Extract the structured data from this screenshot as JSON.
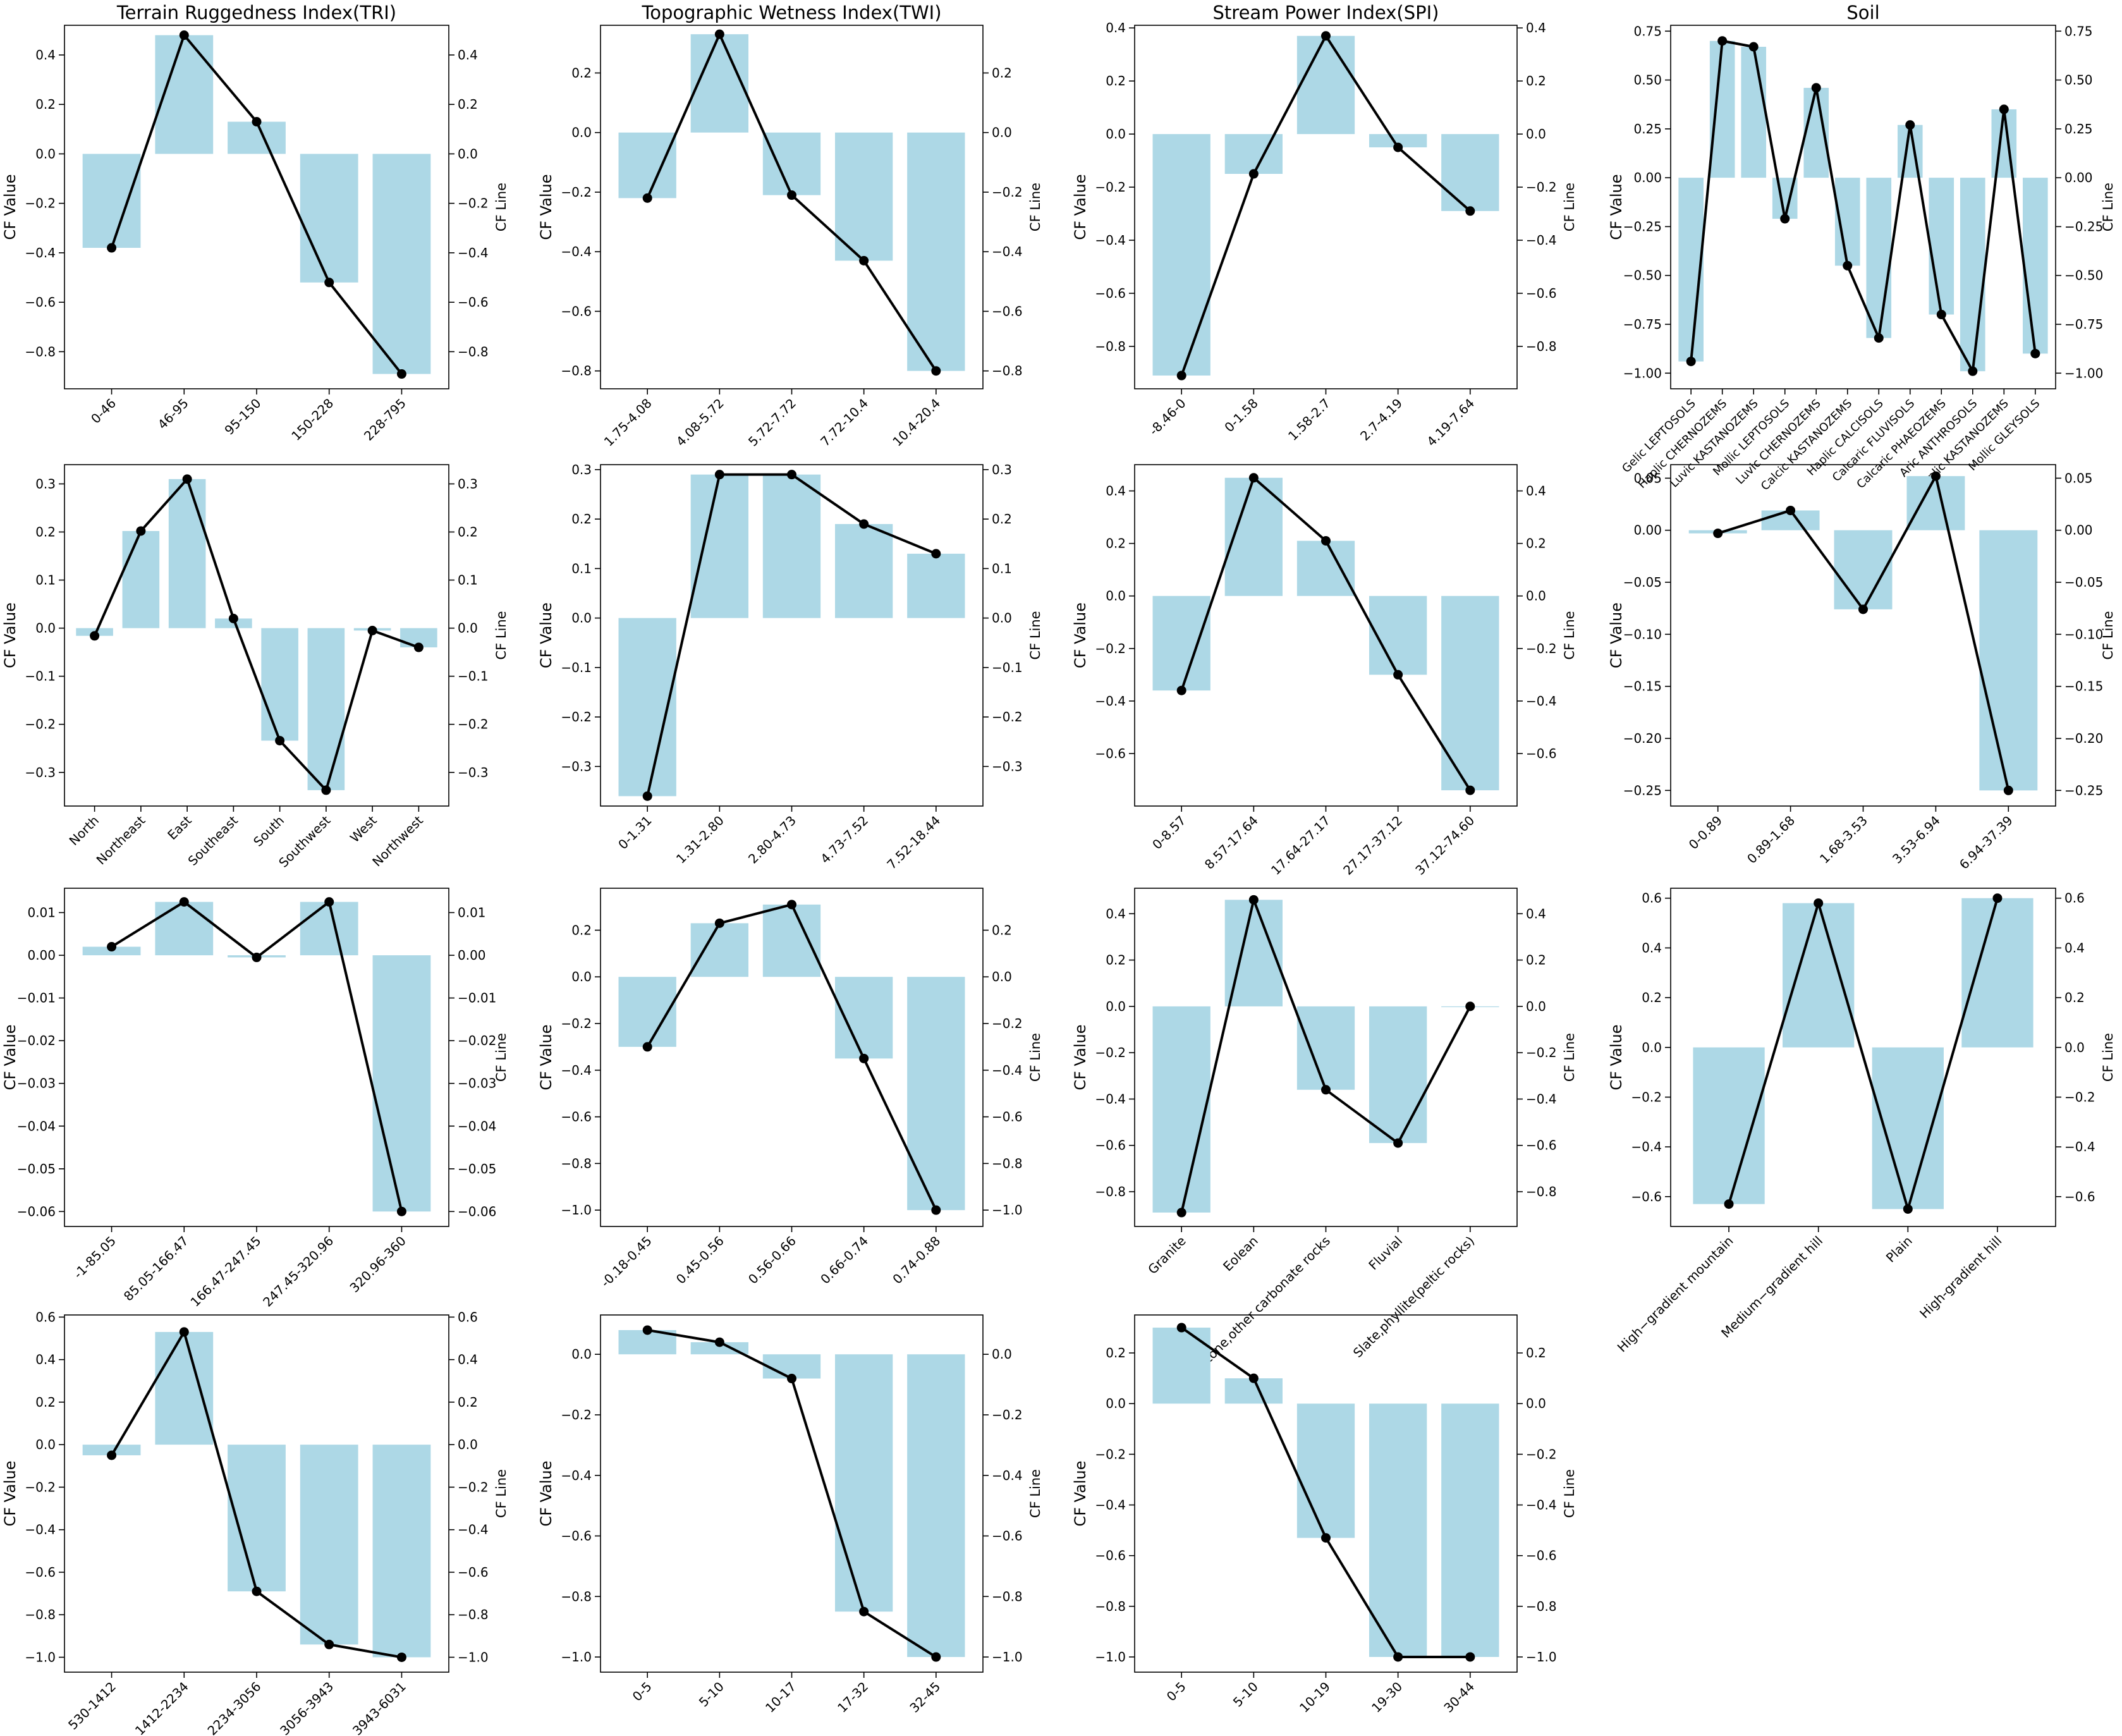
{
  "figure": {
    "rows": 4,
    "cols": 4,
    "bar_color": "#add8e6",
    "line_color": "#000000",
    "left_ylabel": "CF Value",
    "right_ylabel": "CF Line"
  },
  "chart_data": [
    {
      "type": "bar",
      "title": "Terrain Ruggedness Index(TRI)",
      "categories": [
        "0-46",
        "46-95",
        "95-150",
        "150-228",
        "228-795"
      ],
      "values": [
        -0.38,
        0.48,
        0.13,
        -0.52,
        -0.89
      ],
      "ylim": [
        -0.95,
        0.52
      ],
      "yticks": [
        0.4,
        0.2,
        0.0,
        -0.2,
        -0.4,
        -0.6,
        -0.8
      ],
      "ytick_labels": [
        "0.4",
        "0.2",
        "0.0",
        "−0.2",
        "−0.4",
        "−0.6",
        "−0.8"
      ]
    },
    {
      "type": "bar",
      "title": "Topographic Wetness Index(TWI)",
      "categories": [
        "1.75-4.08",
        "4.08-5.72",
        "5.72-7.72",
        "7.72-10.4",
        "10.4-20.4"
      ],
      "values": [
        -0.22,
        0.33,
        -0.21,
        -0.43,
        -0.8
      ],
      "ylim": [
        -0.86,
        0.36
      ],
      "yticks": [
        0.2,
        0.0,
        -0.2,
        -0.4,
        -0.6,
        -0.8
      ],
      "ytick_labels": [
        "0.2",
        "0.0",
        "−0.2",
        "−0.4",
        "−0.6",
        "−0.8"
      ]
    },
    {
      "type": "bar",
      "title": "Stream Power Index(SPI)",
      "categories": [
        "-8.46-0",
        "0-1.58",
        "1.58-2.7",
        "2.7-4.19",
        "4.19-7.64"
      ],
      "values": [
        -0.91,
        -0.15,
        0.37,
        -0.05,
        -0.29
      ],
      "ylim": [
        -0.96,
        0.41
      ],
      "yticks": [
        0.4,
        0.2,
        0.0,
        -0.2,
        -0.4,
        -0.6,
        -0.8
      ],
      "ytick_labels": [
        "0.4",
        "0.2",
        "0.0",
        "−0.2",
        "−0.4",
        "−0.6",
        "−0.8"
      ]
    },
    {
      "type": "bar",
      "title": "Soil",
      "categories": [
        "Gelic LEPTOSOLS",
        "Haplic CHERNOZEMS",
        "Luvic KASTANOZEMS",
        "Mollic LEPTOSOLS",
        "Luvic CHERNOZEMS",
        "Calcic KASTANOZEMS",
        "Haplic CALCISOLS",
        "Calcaric FLUVISOLS",
        "Calcaric PHAEOZEMS",
        "Aric ANTHROSOLS",
        "Haplic KASTANOZEMS",
        "Mollic GLEYSOLS"
      ],
      "values": [
        -0.94,
        0.7,
        0.67,
        -0.21,
        0.46,
        -0.45,
        -0.82,
        0.27,
        -0.7,
        -0.99,
        0.35,
        -0.9
      ],
      "ylim": [
        -1.08,
        0.78
      ],
      "yticks": [
        0.75,
        0.5,
        0.25,
        0.0,
        -0.25,
        -0.5,
        -0.75,
        -1.0
      ],
      "ytick_labels": [
        "0.75",
        "0.50",
        "0.25",
        "0.00",
        "−0.25",
        "−0.50",
        "−0.75",
        "−1.00"
      ]
    },
    {
      "type": "bar",
      "title": "",
      "categories": [
        "North",
        "Northeast",
        "East",
        "Southeast",
        "South",
        "Southwest",
        "West",
        "Northwest"
      ],
      "values": [
        -0.016,
        0.202,
        0.31,
        0.02,
        -0.234,
        -0.337,
        -0.005,
        -0.04
      ],
      "ylim": [
        -0.37,
        0.34
      ],
      "yticks": [
        0.3,
        0.2,
        0.1,
        0.0,
        -0.1,
        -0.2,
        -0.3
      ],
      "ytick_labels": [
        "0.3",
        "0.2",
        "0.1",
        "0.0",
        "−0.1",
        "−0.2",
        "−0.3"
      ]
    },
    {
      "type": "bar",
      "title": "",
      "categories": [
        "0-1.31",
        "1.31-2.80",
        "2.80-4.73",
        "4.73-7.52",
        "7.52-18.44"
      ],
      "values": [
        -0.36,
        0.29,
        0.29,
        0.19,
        0.13
      ],
      "ylim": [
        -0.38,
        0.31
      ],
      "yticks": [
        0.3,
        0.2,
        0.1,
        0.0,
        -0.1,
        -0.2,
        -0.3
      ],
      "ytick_labels": [
        "0.3",
        "0.2",
        "0.1",
        "0.0",
        "−0.1",
        "−0.2",
        "−0.3"
      ]
    },
    {
      "type": "bar",
      "title": "",
      "categories": [
        "0-8.57",
        "8.57-17.64",
        "17.64-27.17",
        "27.17-37.12",
        "37.12-74.60"
      ],
      "values": [
        -0.36,
        0.45,
        0.21,
        -0.3,
        -0.74
      ],
      "ylim": [
        -0.8,
        0.5
      ],
      "yticks": [
        0.4,
        0.2,
        0.0,
        -0.2,
        -0.4,
        -0.6
      ],
      "ytick_labels": [
        "0.4",
        "0.2",
        "0.0",
        "−0.2",
        "−0.4",
        "−0.6"
      ]
    },
    {
      "type": "bar",
      "title": "",
      "categories": [
        "0-0.89",
        "0.89-1.68",
        "1.68-3.53",
        "3.53-6.94",
        "6.94-37.39"
      ],
      "values": [
        -0.003,
        0.019,
        -0.076,
        0.052,
        -0.25
      ],
      "ylim": [
        -0.265,
        0.063
      ],
      "yticks": [
        0.05,
        0.0,
        -0.05,
        -0.1,
        -0.15,
        -0.2,
        -0.25
      ],
      "ytick_labels": [
        "0.05",
        "0.00",
        "−0.05",
        "−0.10",
        "−0.15",
        "−0.20",
        "−0.25"
      ]
    },
    {
      "type": "bar",
      "title": "",
      "categories": [
        "-1-85.05",
        "85.05-166.47",
        "166.47-247.45",
        "247.45-320.96",
        "320.96-360"
      ],
      "values": [
        0.002,
        0.0125,
        -0.0005,
        0.0125,
        -0.06
      ],
      "ylim": [
        -0.0635,
        0.0157
      ],
      "yticks": [
        0.01,
        0.0,
        -0.01,
        -0.02,
        -0.03,
        -0.04,
        -0.05,
        -0.06
      ],
      "ytick_labels": [
        "0.01",
        "0.00",
        "−0.01",
        "−0.02",
        "−0.03",
        "−0.04",
        "−0.05",
        "−0.06"
      ]
    },
    {
      "type": "bar",
      "title": "",
      "categories": [
        "-0.18-0.45",
        "0.45-0.56",
        "0.56-0.66",
        "0.66-0.74",
        "0.74-0.88"
      ],
      "values": [
        -0.3,
        0.23,
        0.31,
        -0.35,
        -1.0
      ],
      "ylim": [
        -1.07,
        0.38
      ],
      "yticks": [
        0.2,
        0.0,
        -0.2,
        -0.4,
        -0.6,
        -0.8,
        -1.0
      ],
      "ytick_labels": [
        "0.2",
        "0.0",
        "−0.2",
        "−0.4",
        "−0.6",
        "−0.8",
        "−1.0"
      ]
    },
    {
      "type": "bar",
      "title": "",
      "categories": [
        "Granite",
        "Eolean",
        "Limestone,other carbonate rocks",
        "Fluvial",
        "Slate,phyllite(peltic rocks)"
      ],
      "values": [
        -0.89,
        0.46,
        -0.36,
        -0.59,
        0.0
      ],
      "ylim": [
        -0.95,
        0.51
      ],
      "yticks": [
        0.4,
        0.2,
        0.0,
        -0.2,
        -0.4,
        -0.6,
        -0.8
      ],
      "ytick_labels": [
        "0.4",
        "0.2",
        "0.0",
        "−0.2",
        "−0.4",
        "−0.6",
        "−0.8"
      ]
    },
    {
      "type": "bar",
      "title": "",
      "categories": [
        "High−gradient mountain",
        "Medium−gradient hill",
        "Plain",
        "High-gradient hill"
      ],
      "values": [
        -0.63,
        0.58,
        -0.65,
        0.6
      ],
      "ylim": [
        -0.72,
        0.64
      ],
      "yticks": [
        0.6,
        0.4,
        0.2,
        0.0,
        -0.2,
        -0.4,
        -0.6
      ],
      "ytick_labels": [
        "0.6",
        "0.4",
        "0.2",
        "0.0",
        "−0.2",
        "−0.4",
        "−0.6"
      ]
    },
    {
      "type": "bar",
      "title": "",
      "categories": [
        "530-1412",
        "1412-2234",
        "2234-3056",
        "3056-3943",
        "3943-6031"
      ],
      "values": [
        -0.05,
        0.53,
        -0.69,
        -0.94,
        -1.0
      ],
      "ylim": [
        -1.07,
        0.61
      ],
      "yticks": [
        0.6,
        0.4,
        0.2,
        0.0,
        -0.2,
        -0.4,
        -0.6,
        -0.8,
        -1.0
      ],
      "ytick_labels": [
        "0.6",
        "0.4",
        "0.2",
        "0.0",
        "−0.2",
        "−0.4",
        "−0.6",
        "−0.8",
        "−1.0"
      ]
    },
    {
      "type": "bar",
      "title": "",
      "categories": [
        "0-5",
        "5-10",
        "10-17",
        "17-32",
        "32-45"
      ],
      "values": [
        0.08,
        0.04,
        -0.08,
        -0.85,
        -1.0
      ],
      "ylim": [
        -1.05,
        0.13
      ],
      "yticks": [
        0.0,
        -0.2,
        -0.4,
        -0.6,
        -0.8,
        -1.0
      ],
      "ytick_labels": [
        "0.0",
        "−0.2",
        "−0.4",
        "−0.6",
        "−0.8",
        "−1.0"
      ]
    },
    {
      "type": "bar",
      "title": "",
      "categories": [
        "0-5",
        "5-10",
        "10-19",
        "19-30",
        "30-44"
      ],
      "values": [
        0.3,
        0.1,
        -0.53,
        -1.0,
        -1.0
      ],
      "ylim": [
        -1.06,
        0.35
      ],
      "yticks": [
        0.2,
        0.0,
        -0.2,
        -0.4,
        -0.6,
        -0.8,
        -1.0
      ],
      "ytick_labels": [
        "0.2",
        "0.0",
        "−0.2",
        "−0.4",
        "−0.6",
        "−0.8",
        "−1.0"
      ]
    }
  ]
}
